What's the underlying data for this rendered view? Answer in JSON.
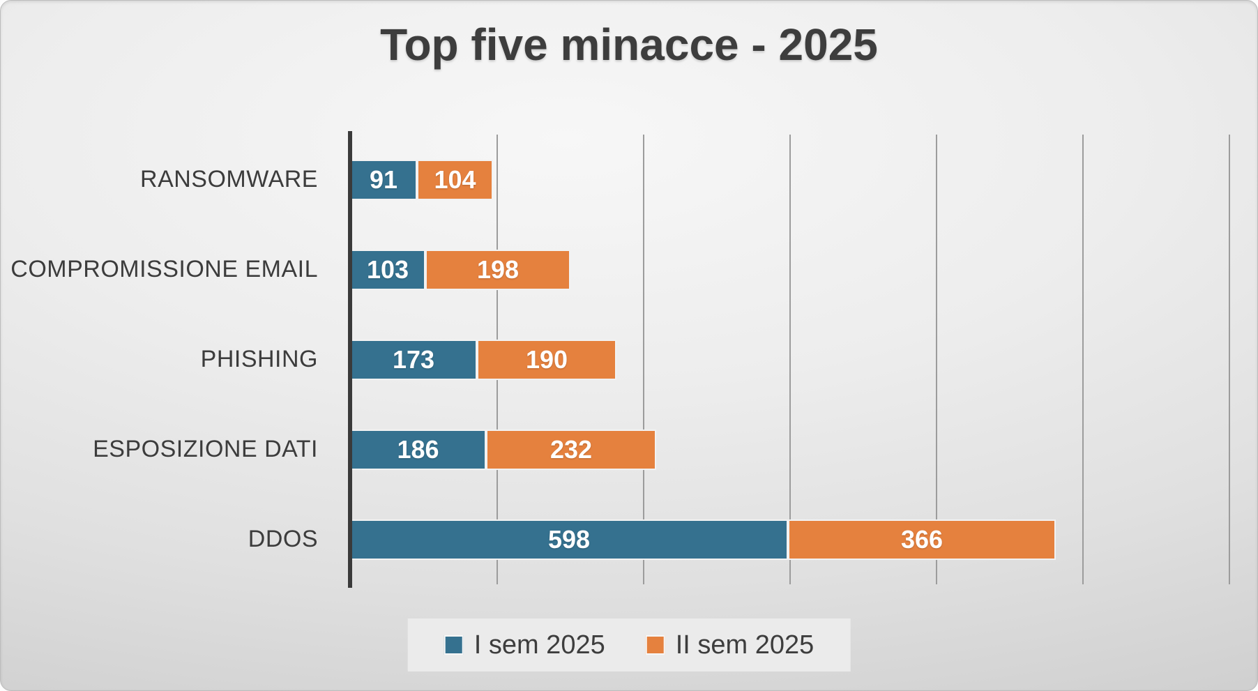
{
  "slide": {
    "background_center": "#f7f7f7",
    "background_edge": "#cdcdcd"
  },
  "chart_data": {
    "type": "bar",
    "orientation": "horizontal",
    "stacked": true,
    "title": "Top five minacce - 2025",
    "categories": [
      "RANSOMWARE",
      "COMPROMISSIONE EMAIL",
      "PHISHING",
      "ESPOSIZIONE DATI",
      "DDOS"
    ],
    "series": [
      {
        "name": "I sem 2025",
        "color": "#35718F",
        "values": [
          91,
          103,
          173,
          186,
          598
        ]
      },
      {
        "name": "II sem 2025",
        "color": "#E5813E",
        "values": [
          104,
          198,
          190,
          232,
          366
        ]
      }
    ],
    "xlim": [
      0,
      1200
    ],
    "grid": true,
    "gridline_interval": 200,
    "gridline_color": "#9c9c9c",
    "axis_color": "#3a3a3a",
    "bar_label_color": "#ffffff",
    "category_label_color": "#3c3c3c",
    "title_color": "#3d3d3d",
    "legend_position": "bottom",
    "legend_background": "#ebebeb",
    "x_tick_labels_visible": false
  }
}
